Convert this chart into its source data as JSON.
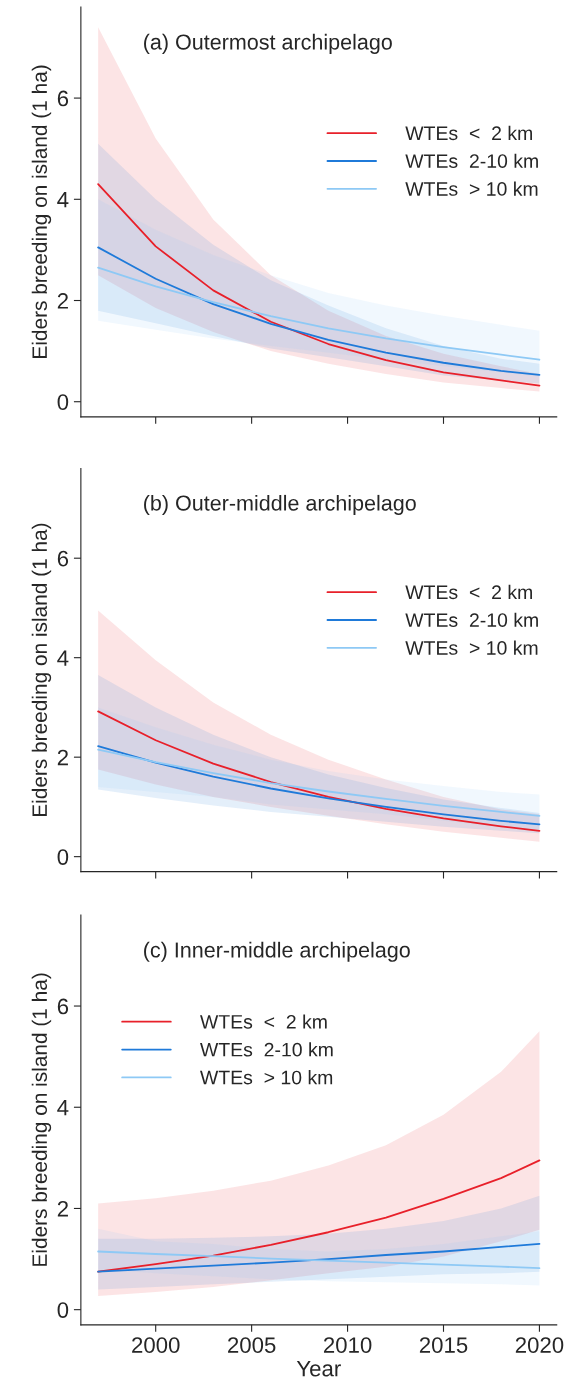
{
  "chart_data": [
    {
      "type": "line",
      "title": "(a) Outermost archipelago",
      "ylabel": "Eiders breeding on island (1 ha)",
      "x": [
        1997,
        2000,
        2003,
        2006,
        2009,
        2012,
        2015,
        2018,
        2020
      ],
      "xlim": [
        1996.1,
        2020.9
      ],
      "xticks": [
        {
          "value": 2000,
          "label": null
        },
        {
          "value": 2005,
          "label": null
        },
        {
          "value": 2010,
          "label": null
        },
        {
          "value": 2015,
          "label": null
        },
        {
          "value": 2020,
          "label": null
        }
      ],
      "ylim": [
        -0.3,
        7.8
      ],
      "yticks": [
        0,
        2,
        4,
        6
      ],
      "tick_labels": "y",
      "grid": false,
      "legend": "right",
      "marker": "none",
      "line_style": "solid",
      "series": [
        {
          "name": "WTEs  <  2 km",
          "color": "#e8202a",
          "values": [
            4.3,
            3.07,
            2.2,
            1.58,
            1.14,
            0.82,
            0.58,
            0.42,
            0.32
          ],
          "lower": [
            2.5,
            1.85,
            1.38,
            1.0,
            0.75,
            0.55,
            0.38,
            0.27,
            0.2
          ],
          "upper": [
            7.4,
            5.2,
            3.6,
            2.5,
            1.8,
            1.3,
            0.95,
            0.7,
            0.55
          ]
        },
        {
          "name": "WTEs  2-10 km",
          "color": "#1f7ad9",
          "values": [
            3.05,
            2.43,
            1.93,
            1.54,
            1.22,
            0.97,
            0.77,
            0.61,
            0.53
          ],
          "lower": [
            1.8,
            1.55,
            1.3,
            1.05,
            0.88,
            0.7,
            0.52,
            0.42,
            0.36
          ],
          "upper": [
            5.1,
            4.0,
            3.1,
            2.4,
            1.9,
            1.45,
            1.1,
            0.85,
            0.75
          ]
        },
        {
          "name": "WTEs  > 10 km",
          "color": "#8ec9f5",
          "values": [
            2.65,
            2.28,
            1.97,
            1.69,
            1.45,
            1.25,
            1.08,
            0.93,
            0.83
          ],
          "lower": [
            1.6,
            1.42,
            1.25,
            1.1,
            0.97,
            0.83,
            0.7,
            0.58,
            0.5
          ],
          "upper": [
            4.0,
            3.4,
            2.9,
            2.5,
            2.15,
            1.9,
            1.7,
            1.52,
            1.4
          ]
        }
      ]
    },
    {
      "type": "line",
      "title": "(b) Outer-middle archipelago",
      "ylabel": "Eiders breeding on island (1 ha)",
      "x": [
        1997,
        2000,
        2003,
        2006,
        2009,
        2012,
        2015,
        2018,
        2020
      ],
      "xlim": [
        1996.1,
        2020.9
      ],
      "xticks": [
        {
          "value": 2000,
          "label": null
        },
        {
          "value": 2005,
          "label": null
        },
        {
          "value": 2010,
          "label": null
        },
        {
          "value": 2015,
          "label": null
        },
        {
          "value": 2020,
          "label": null
        }
      ],
      "ylim": [
        -0.3,
        7.8
      ],
      "yticks": [
        0,
        2,
        4,
        6
      ],
      "tick_labels": "y",
      "grid": false,
      "legend": "right",
      "marker": "none",
      "line_style": "solid",
      "series": [
        {
          "name": "WTEs  <  2 km",
          "color": "#e8202a",
          "values": [
            2.92,
            2.34,
            1.87,
            1.5,
            1.2,
            0.96,
            0.77,
            0.61,
            0.52
          ],
          "lower": [
            1.75,
            1.45,
            1.2,
            1.0,
            0.82,
            0.65,
            0.5,
            0.38,
            0.3
          ],
          "upper": [
            4.95,
            3.95,
            3.1,
            2.45,
            1.95,
            1.55,
            1.2,
            0.95,
            0.85
          ]
        },
        {
          "name": "WTEs  2-10 km",
          "color": "#1f7ad9",
          "values": [
            2.22,
            1.89,
            1.61,
            1.37,
            1.17,
            1.0,
            0.85,
            0.72,
            0.65
          ],
          "lower": [
            1.35,
            1.18,
            1.03,
            0.9,
            0.8,
            0.7,
            0.6,
            0.52,
            0.47
          ],
          "upper": [
            3.65,
            3.0,
            2.45,
            2.0,
            1.65,
            1.38,
            1.15,
            0.98,
            0.88
          ]
        },
        {
          "name": "WTEs  > 10 km",
          "color": "#8ec9f5",
          "values": [
            2.15,
            1.9,
            1.68,
            1.48,
            1.31,
            1.16,
            1.02,
            0.9,
            0.82
          ],
          "lower": [
            1.4,
            1.3,
            1.2,
            1.05,
            0.95,
            0.85,
            0.72,
            0.6,
            0.55
          ],
          "upper": [
            3.0,
            2.6,
            2.25,
            1.95,
            1.72,
            1.55,
            1.42,
            1.3,
            1.25
          ]
        }
      ]
    },
    {
      "type": "line",
      "title": "(c) Inner-middle archipelago",
      "ylabel": "Eiders breeding on island (1 ha)",
      "xlabel": "Year",
      "x": [
        1997,
        2000,
        2003,
        2006,
        2009,
        2012,
        2015,
        2018,
        2020
      ],
      "xlim": [
        1996.1,
        2020.9
      ],
      "xticks": [
        2000,
        2005,
        2010,
        2015,
        2020
      ],
      "ylim": [
        -0.3,
        7.8
      ],
      "yticks": [
        0,
        2,
        4,
        6
      ],
      "grid": false,
      "legend": "top left",
      "marker": "none",
      "line_style": "solid",
      "series": [
        {
          "name": "WTEs  <  2 km",
          "color": "#e8202a",
          "values": [
            0.75,
            0.9,
            1.07,
            1.28,
            1.53,
            1.82,
            2.19,
            2.6,
            2.95
          ],
          "lower": [
            0.27,
            0.35,
            0.45,
            0.58,
            0.72,
            0.85,
            1.05,
            1.35,
            1.58
          ],
          "upper": [
            2.1,
            2.2,
            2.35,
            2.55,
            2.85,
            3.25,
            3.85,
            4.7,
            5.5
          ]
        },
        {
          "name": "WTEs  2-10 km",
          "color": "#1f7ad9",
          "values": [
            0.75,
            0.81,
            0.87,
            0.93,
            1.0,
            1.08,
            1.15,
            1.24,
            1.3
          ],
          "lower": [
            0.4,
            0.45,
            0.5,
            0.55,
            0.6,
            0.65,
            0.7,
            0.72,
            0.75
          ],
          "upper": [
            1.4,
            1.4,
            1.42,
            1.45,
            1.5,
            1.6,
            1.75,
            2.0,
            2.25
          ]
        },
        {
          "name": "WTEs  > 10 km",
          "color": "#8ec9f5",
          "values": [
            1.15,
            1.1,
            1.06,
            1.01,
            0.97,
            0.93,
            0.89,
            0.85,
            0.82
          ],
          "lower": [
            0.8,
            0.72,
            0.66,
            0.6,
            0.56,
            0.54,
            0.52,
            0.5,
            0.48
          ],
          "upper": [
            1.6,
            1.35,
            1.3,
            1.2,
            1.15,
            1.2,
            1.3,
            1.45,
            1.55
          ]
        }
      ]
    }
  ]
}
